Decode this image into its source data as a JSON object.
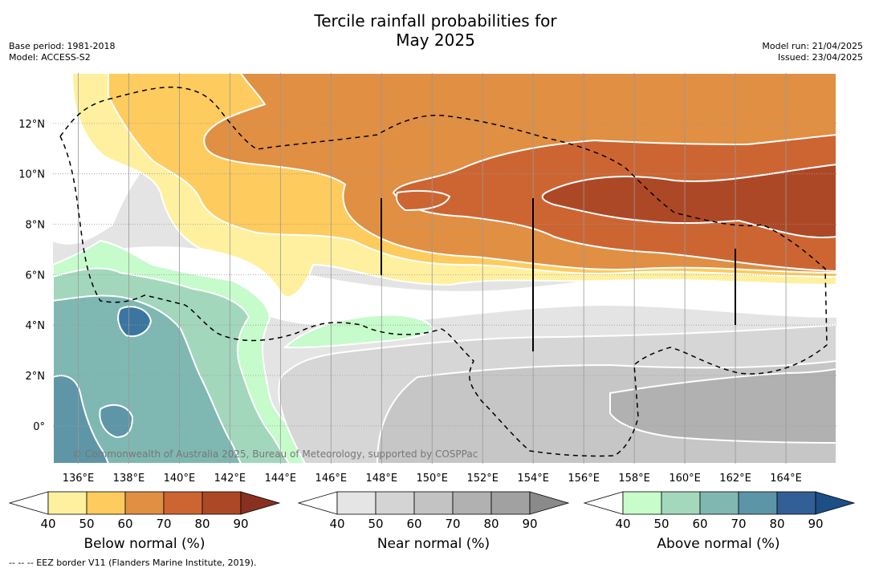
{
  "header": {
    "title_line1": "Tercile rainfall probabilities for",
    "title_line2": "May 2025",
    "base_period": "Base period: 1981-2018",
    "model": "Model: ACCESS-S2",
    "model_run": "Model run: 21/04/2025",
    "issued": "Issued: 23/04/2025"
  },
  "map": {
    "lat_labels": [
      "12°N",
      "10°N",
      "8°N",
      "6°N",
      "4°N",
      "2°N",
      "0°"
    ],
    "lon_labels": [
      "136°E",
      "138°E",
      "140°E",
      "142°E",
      "144°E",
      "146°E",
      "148°E",
      "150°E",
      "152°E",
      "154°E",
      "156°E",
      "158°E",
      "160°E",
      "162°E",
      "164°E"
    ],
    "copyright": "© Commonwealth of Australia 2025, Bureau of Meteorology, supported by COSPPac",
    "colors": {
      "gray_base": "#e4e4e4",
      "white": "#ffffff",
      "orange_50": "#fff09f",
      "orange_60": "#fecb5e",
      "orange_70": "#e08f43",
      "orange_80": "#cd6533",
      "orange_90": "#ad4826",
      "gray_50": "#d6d6d6",
      "gray_60": "#c6c6c6",
      "gray_70": "#b1b1b1",
      "green_50": "#c6fbcb",
      "green_60": "#a2d7bc",
      "green_70": "#7fb8b2",
      "green_80": "#5e96a7",
      "green_90": "#3b76a0"
    }
  },
  "colorbars": [
    {
      "label": "Below normal (%)",
      "ticks": [
        "40",
        "50",
        "60",
        "70",
        "80",
        "90"
      ],
      "colors": [
        "#ffffff",
        "#fff09f",
        "#fecb5e",
        "#e08f43",
        "#cd6533",
        "#ad4826",
        "#8a3020"
      ]
    },
    {
      "label": "Near normal (%)",
      "ticks": [
        "40",
        "50",
        "60",
        "70",
        "80",
        "90"
      ],
      "colors": [
        "#ffffff",
        "#e5e5e5",
        "#d4d4d4",
        "#c3c3c3",
        "#b1b1b1",
        "#a1a1a1",
        "#8a8a8a"
      ]
    },
    {
      "label": "Above normal (%)",
      "ticks": [
        "40",
        "50",
        "60",
        "70",
        "80",
        "90"
      ],
      "colors": [
        "#ffffff",
        "#c8fcca",
        "#a4d8bd",
        "#80b7b1",
        "#5d95a8",
        "#325f95",
        "#1d4e86"
      ]
    }
  ],
  "footnote": "--  --  -- EEZ border V11 (Flanders Marine Institute, 2019)."
}
